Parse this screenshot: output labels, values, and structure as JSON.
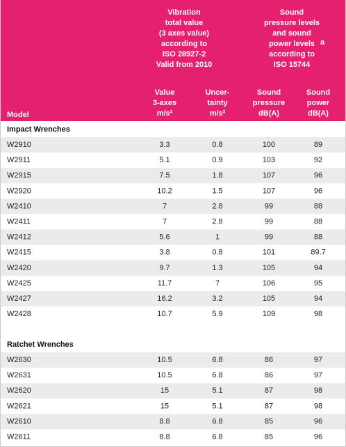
{
  "header": {
    "vibration": [
      "Vibration",
      "total value",
      "(3 axes value)",
      "according to",
      "ISO 28927-2",
      "Valid from 2010"
    ],
    "sound": [
      "Sound",
      "pressure levels",
      "and sound",
      "power levels",
      "according to",
      "ISO 15744"
    ],
    "sound_note": "a",
    "columns": [
      [
        "Model"
      ],
      [
        "Value",
        "3-axes",
        "m/s²"
      ],
      [
        "Uncer-",
        "tainty",
        "m/s²"
      ],
      [
        "Sound",
        "pressure",
        "dB(A)"
      ],
      [
        "Sound",
        "power",
        "dB(A)"
      ]
    ]
  },
  "groups": [
    {
      "title": "Impact Wrenches",
      "rows": [
        [
          "W2910",
          "3.3",
          "0.8",
          "100",
          "89"
        ],
        [
          "W2911",
          "5.1",
          "0.9",
          "103",
          "92"
        ],
        [
          "W2915",
          "7.5",
          "1.8",
          "107",
          "96"
        ],
        [
          "W2920",
          "10.2",
          "1.5",
          "107",
          "96"
        ],
        [
          "W2410",
          "7",
          "2.8",
          "99",
          "88"
        ],
        [
          "W2411",
          "7",
          "2.8",
          "99",
          "88"
        ],
        [
          "W2412",
          "5.6",
          "1",
          "99",
          "88"
        ],
        [
          "W2415",
          "3.8",
          "0.8",
          "101",
          "89.7"
        ],
        [
          "W2420",
          "9.7",
          "1.3",
          "105",
          "94"
        ],
        [
          "W2425",
          "11.7",
          "7",
          "106",
          "95"
        ],
        [
          "W2427",
          "16.2",
          "3.2",
          "105",
          "94"
        ],
        [
          "W2428",
          "10.7",
          "5.9",
          "109",
          "98"
        ]
      ]
    },
    {
      "title": "Ratchet Wrenches",
      "rows": [
        [
          "W2630",
          "10.5",
          "6.8",
          "86",
          "97"
        ],
        [
          "W2631",
          "10.5",
          "6.8",
          "86",
          "97"
        ],
        [
          "W2620",
          "15",
          "5.1",
          "87",
          "98"
        ],
        [
          "W2621",
          "15",
          "5.1",
          "87",
          "98"
        ],
        [
          "W2610",
          "8.8",
          "6.8",
          "85",
          "96"
        ],
        [
          "W2611",
          "8.8",
          "6.8",
          "85",
          "96"
        ]
      ]
    }
  ]
}
